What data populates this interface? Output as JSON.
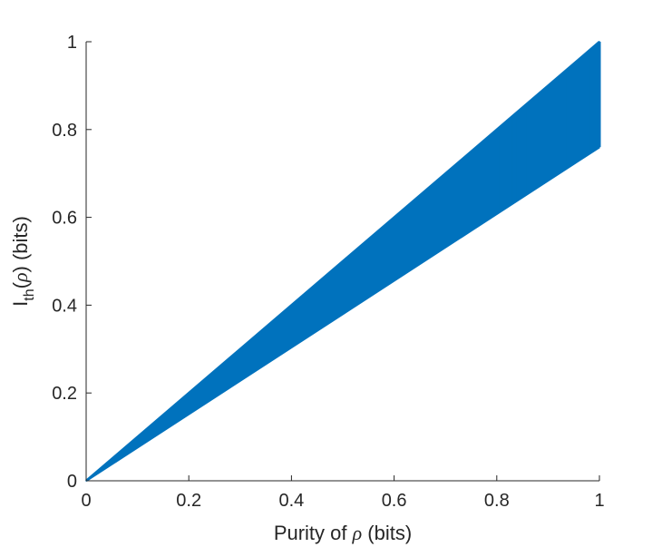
{
  "chart_data": {
    "type": "line",
    "title": "",
    "xlabel": {
      "pre": "Purity of ",
      "symbol": "ρ",
      "post": " (bits)"
    },
    "ylabel": {
      "pre": "I",
      "sub": "th",
      "open": "(",
      "symbol": "ρ",
      "close": ") (bits)"
    },
    "xlim": [
      0,
      1
    ],
    "ylim": [
      0,
      1
    ],
    "grid": false,
    "legend": "none",
    "xticks": [
      0,
      0.2,
      0.4,
      0.6,
      0.8,
      1
    ],
    "xtick_labels": [
      "0",
      "0.2",
      "0.4",
      "0.6",
      "0.8",
      "1"
    ],
    "yticks": [
      0,
      0.2,
      0.4,
      0.6,
      0.8,
      1
    ],
    "ytick_labels": [
      "0",
      "0.2",
      "0.4",
      "0.6",
      "0.8",
      "1"
    ],
    "series": [
      {
        "color": "#0072BD",
        "description_points": {
          "x": [
            0,
            1,
            1,
            0
          ],
          "y": [
            0,
            1,
            0.76,
            0
          ]
        },
        "upper_envelope": {
          "x": [
            0,
            1
          ],
          "y": [
            0,
            1
          ]
        },
        "lower_envelope": {
          "x": [
            0,
            1
          ],
          "y": [
            0,
            0.76
          ]
        }
      }
    ]
  },
  "colors": {
    "series": "#0072BD",
    "axis": "#262626"
  }
}
